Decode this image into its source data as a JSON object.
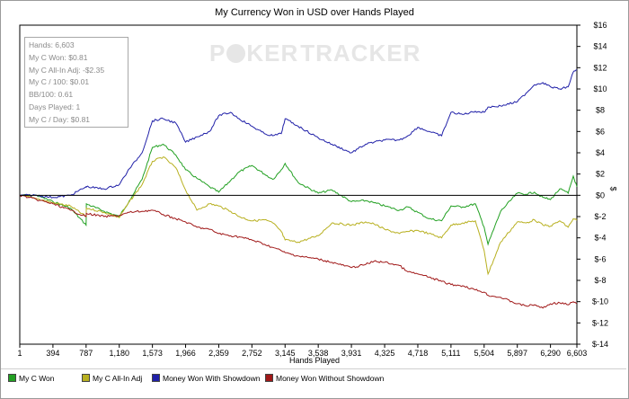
{
  "chart_data": {
    "type": "line",
    "title": "My Currency Won in USD over Hands Played",
    "xlabel": "Hands Played",
    "ylabel": "$",
    "xlim": [
      1,
      6603
    ],
    "ylim": [
      -14,
      16
    ],
    "xticks": [
      1,
      394,
      787,
      1180,
      1573,
      1966,
      2359,
      2752,
      3145,
      3538,
      3931,
      4325,
      4718,
      5111,
      5504,
      5897,
      6290,
      6603
    ],
    "xtick_labels": [
      "1",
      "394",
      "787",
      "1,180",
      "1,573",
      "1,966",
      "2,359",
      "2,752",
      "3,145",
      "3,538",
      "3,931",
      "4,325",
      "4,718",
      "5,111",
      "5,504",
      "5,897",
      "6,290",
      "6,603"
    ],
    "yticks": [
      -14,
      -12,
      -10,
      -8,
      -6,
      -4,
      -2,
      0,
      2,
      4,
      6,
      8,
      10,
      12,
      14,
      16
    ],
    "ytick_labels": [
      "$-14",
      "$-12",
      "$-10",
      "$-8",
      "$-6",
      "$-4",
      "$-2",
      "$0",
      "$2",
      "$4",
      "$6",
      "$8",
      "$10",
      "$12",
      "$14",
      "$16"
    ],
    "grid": false,
    "zero_line": true,
    "legend_position": "bottom",
    "series": [
      {
        "name": "My C Won",
        "color": "#22a022",
        "x": [
          1,
          200,
          394,
          600,
          787,
          790,
          1000,
          1180,
          1300,
          1450,
          1573,
          1700,
          1850,
          1966,
          2100,
          2250,
          2359,
          2500,
          2600,
          2752,
          2900,
          3000,
          3100,
          3145,
          3300,
          3538,
          3700,
          3931,
          4100,
          4200,
          4325,
          4500,
          4600,
          4718,
          4850,
          5000,
          5111,
          5250,
          5400,
          5504,
          5550,
          5700,
          5897,
          6000,
          6100,
          6200,
          6290,
          6400,
          6500,
          6560,
          6603
        ],
        "y": [
          0,
          0,
          -0.6,
          -1.2,
          -2.8,
          -0.8,
          -1.5,
          -2.0,
          -0.5,
          1.5,
          4.5,
          4.8,
          3.8,
          2.4,
          1.6,
          0.8,
          0.3,
          1.4,
          2.2,
          2.8,
          2.0,
          1.5,
          2.4,
          3.0,
          1.2,
          0.2,
          0.5,
          -0.6,
          -0.5,
          -0.7,
          -1.0,
          -1.4,
          -1.1,
          -1.6,
          -2.2,
          -2.4,
          -1.0,
          -1.1,
          -0.8,
          -3.0,
          -4.6,
          -1.5,
          0.2,
          0.1,
          0.3,
          -0.2,
          -0.4,
          0.6,
          0.2,
          1.8,
          0.8
        ]
      },
      {
        "name": "My C All-In Adj",
        "color": "#b8b020",
        "x": [
          1,
          200,
          394,
          600,
          787,
          790,
          1000,
          1180,
          1300,
          1450,
          1573,
          1700,
          1850,
          1966,
          2100,
          2250,
          2359,
          2500,
          2600,
          2752,
          2900,
          3000,
          3100,
          3145,
          3300,
          3538,
          3700,
          3931,
          4100,
          4200,
          4325,
          4500,
          4600,
          4718,
          4850,
          5000,
          5111,
          5250,
          5400,
          5504,
          5550,
          5700,
          5897,
          6000,
          6100,
          6200,
          6290,
          6400,
          6500,
          6560,
          6603
        ],
        "y": [
          0,
          -0.3,
          -0.7,
          -1.0,
          -2.0,
          -1.2,
          -1.6,
          -2.1,
          -0.6,
          1.0,
          3.2,
          3.6,
          2.6,
          0.5,
          -1.4,
          -0.8,
          -1.0,
          -1.5,
          -2.0,
          -2.4,
          -2.3,
          -2.6,
          -3.4,
          -4.2,
          -4.4,
          -3.8,
          -2.6,
          -2.8,
          -2.5,
          -2.7,
          -3.2,
          -3.6,
          -3.4,
          -3.3,
          -3.6,
          -4.0,
          -2.8,
          -2.6,
          -2.4,
          -5.2,
          -7.4,
          -4.4,
          -2.5,
          -2.6,
          -2.3,
          -2.8,
          -2.9,
          -2.4,
          -3.0,
          -2.2,
          -2.35
        ]
      },
      {
        "name": "Money Won With Showdown",
        "color": "#2020a8",
        "x": [
          1,
          200,
          394,
          600,
          787,
          790,
          1000,
          1180,
          1300,
          1450,
          1573,
          1700,
          1850,
          1966,
          2100,
          2250,
          2359,
          2500,
          2600,
          2752,
          2900,
          3000,
          3100,
          3145,
          3300,
          3538,
          3700,
          3931,
          4100,
          4200,
          4325,
          4500,
          4600,
          4718,
          4850,
          5000,
          5111,
          5250,
          5400,
          5504,
          5550,
          5700,
          5897,
          6000,
          6100,
          6200,
          6290,
          6400,
          6500,
          6560,
          6603
        ],
        "y": [
          0,
          0,
          -0.2,
          0,
          0.8,
          0.8,
          0.6,
          1.0,
          2.5,
          4.0,
          7.0,
          7.2,
          6.8,
          5.0,
          5.5,
          6.0,
          7.5,
          7.8,
          7.2,
          6.5,
          5.8,
          5.6,
          5.8,
          7.2,
          6.5,
          5.4,
          4.8,
          4.0,
          4.8,
          5.0,
          5.2,
          5.2,
          5.6,
          6.4,
          6.0,
          5.6,
          7.8,
          7.6,
          7.9,
          7.8,
          8.3,
          8.4,
          8.8,
          9.6,
          10.4,
          10.6,
          10.2,
          10.0,
          10.2,
          11.6,
          11.8
        ]
      },
      {
        "name": "Money Won Without Showdown",
        "color": "#a01818",
        "x": [
          1,
          200,
          394,
          600,
          787,
          790,
          1000,
          1180,
          1300,
          1450,
          1573,
          1700,
          1850,
          1966,
          2100,
          2250,
          2359,
          2500,
          2600,
          2752,
          2900,
          3000,
          3100,
          3145,
          3300,
          3538,
          3700,
          3931,
          4100,
          4200,
          4325,
          4500,
          4600,
          4718,
          4850,
          5000,
          5111,
          5250,
          5400,
          5504,
          5550,
          5700,
          5897,
          6000,
          6100,
          6200,
          6290,
          6400,
          6500,
          6560,
          6603
        ],
        "y": [
          0,
          -0.4,
          -0.8,
          -1.4,
          -2.0,
          -1.7,
          -2.0,
          -1.9,
          -1.6,
          -1.5,
          -1.4,
          -1.8,
          -2.2,
          -2.5,
          -3.0,
          -3.2,
          -3.6,
          -3.8,
          -3.9,
          -4.2,
          -4.6,
          -4.9,
          -5.2,
          -5.4,
          -5.7,
          -6.0,
          -6.3,
          -6.8,
          -6.5,
          -6.2,
          -6.3,
          -6.6,
          -7.2,
          -7.4,
          -7.7,
          -8.1,
          -8.4,
          -8.5,
          -8.9,
          -9.1,
          -9.4,
          -9.6,
          -10.2,
          -10.4,
          -10.3,
          -10.6,
          -10.2,
          -10.1,
          -10.3,
          -10.0,
          -10.2
        ]
      }
    ]
  },
  "stats": [
    "Hands: 6,603",
    "My C Won: $0.81",
    "My C All-In Adj: -$2.35",
    "My C / 100: $0.01",
    "BB/100: 0.61",
    "Days Played: 1",
    "My C / Day: $0.81"
  ],
  "watermark": {
    "left": "P",
    "middle": "KER",
    "right": "TRACKER"
  },
  "legend": [
    {
      "label": "My C Won",
      "color": "#22a022"
    },
    {
      "label": "My C All-In Adj",
      "color": "#b8b020"
    },
    {
      "label": "Money Won With Showdown",
      "color": "#2020a8"
    },
    {
      "label": "Money Won Without Showdown",
      "color": "#a01818"
    }
  ]
}
